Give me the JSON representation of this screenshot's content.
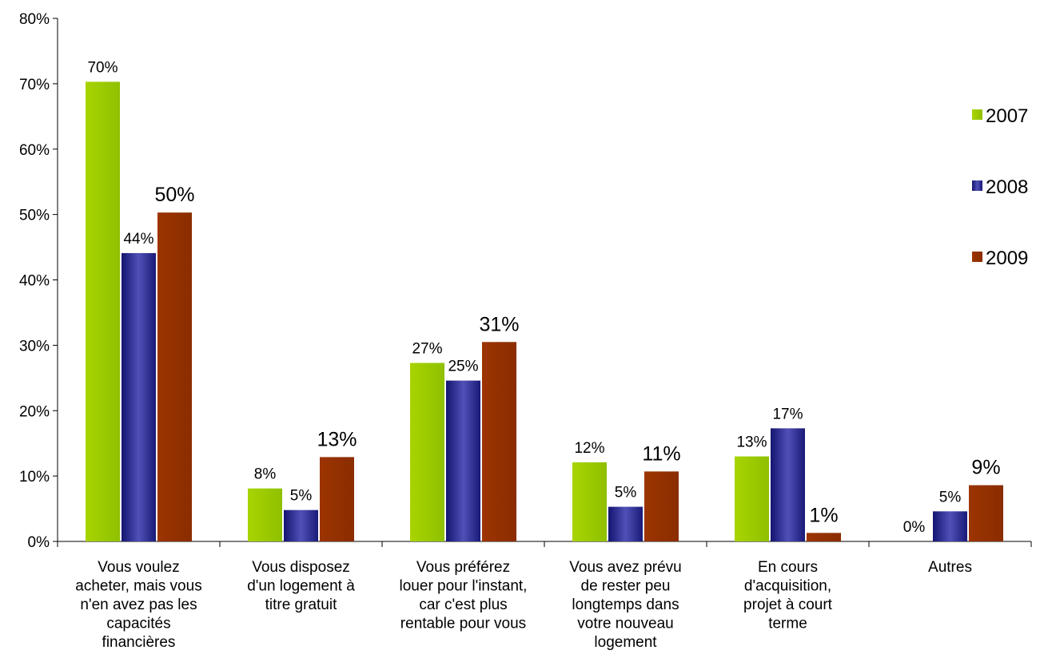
{
  "chart_data": {
    "type": "bar",
    "categories": [
      [
        "Vous voulez",
        "acheter, mais vous",
        "n'en avez pas les",
        "capacités",
        "financières"
      ],
      [
        "Vous disposez",
        "d'un logement à",
        "titre gratuit"
      ],
      [
        "Vous préférez",
        "louer pour l'instant,",
        "car c'est plus",
        "rentable pour vous"
      ],
      [
        "Vous avez prévu",
        "de rester peu",
        "longtemps dans",
        "votre nouveau",
        "logement"
      ],
      [
        "En cours",
        "d'acquisition,",
        "projet à court",
        "terme"
      ],
      [
        "Autres"
      ]
    ],
    "series": [
      {
        "name": "2007",
        "color": "#99cc00",
        "values": [
          70.3,
          8.1,
          27.3,
          12.1,
          13.0,
          0
        ],
        "labels": [
          "70%",
          "8%",
          "27%",
          "12%",
          "13%",
          "0%"
        ]
      },
      {
        "name": "2008",
        "color": "#333399",
        "values": [
          44.1,
          4.8,
          24.6,
          5.3,
          17.3,
          4.6
        ],
        "labels": [
          "44%",
          "5%",
          "25%",
          "5%",
          "17%",
          "5%"
        ]
      },
      {
        "name": "2009",
        "color": "#993300",
        "values": [
          50.3,
          12.9,
          30.5,
          10.7,
          1.3,
          8.6
        ],
        "labels": [
          "50%",
          "13%",
          "31%",
          "11%",
          "1%",
          "9%"
        ]
      }
    ],
    "ylim": [
      0,
      80
    ],
    "yticks": [
      "0%",
      "10%",
      "20%",
      "30%",
      "40%",
      "50%",
      "60%",
      "70%",
      "80%"
    ],
    "legend_position": "right",
    "grid": false
  }
}
